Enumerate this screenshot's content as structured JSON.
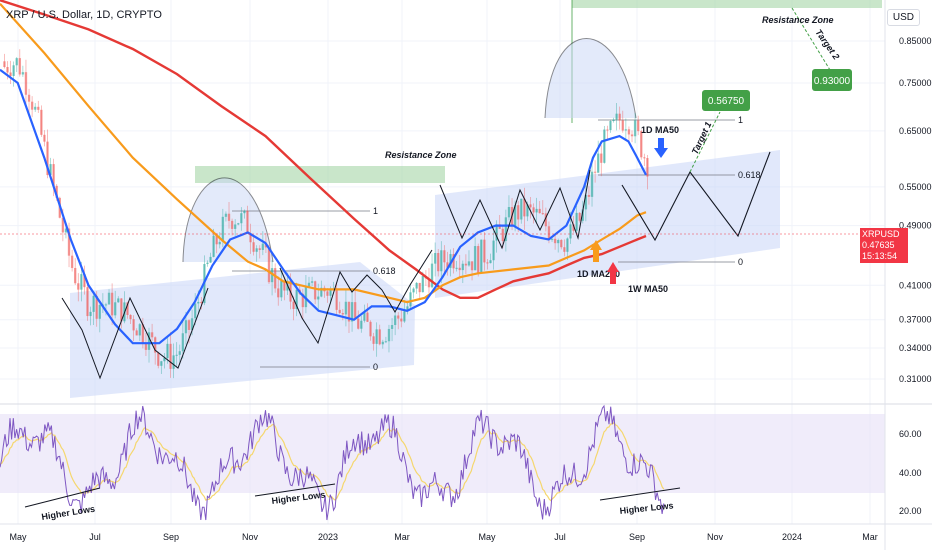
{
  "header": {
    "symbol_title": "XRP / U.S. Dollar, 1D, CRYPTO",
    "scale_label": "USD"
  },
  "price_tag": {
    "symbol": "XRPUSD",
    "price": "0.47635",
    "countdown": "15:13:54"
  },
  "colors": {
    "ma50": "#2962ff",
    "ma200": "#f89b1c",
    "weekly_ma50": "#e53935",
    "rsi_line": "#7e57c2",
    "rsi_ma": "#f5d76e",
    "channel_fill": "#c9d6f7",
    "resistance_fill": "#a5d6a7",
    "target_green": "#43a047",
    "price_red": "#f23645"
  },
  "chart_data": [
    {
      "type": "line",
      "title": "XRP / U.S. Dollar, 1D, CRYPTO",
      "y_scale": "log",
      "y_ticks": [
        "0.85000",
        "0.75000",
        "0.65000",
        "0.55000",
        "0.49000",
        "0.41000",
        "0.37000",
        "0.34000",
        "0.31000"
      ],
      "x_ticks": [
        "May",
        "Jul",
        "Sep",
        "Nov",
        "2023",
        "Mar",
        "May",
        "Jul",
        "Sep",
        "Nov",
        "2024",
        "Mar"
      ],
      "series": [
        {
          "name": "1D MA50",
          "points": [
            [
              0.0,
              0.78
            ],
            [
              0.02,
              0.75
            ],
            [
              0.05,
              0.6
            ],
            [
              0.08,
              0.47
            ],
            [
              0.1,
              0.41
            ],
            [
              0.13,
              0.365
            ],
            [
              0.15,
              0.345
            ],
            [
              0.18,
              0.345
            ],
            [
              0.2,
              0.36
            ],
            [
              0.22,
              0.39
            ],
            [
              0.24,
              0.435
            ],
            [
              0.26,
              0.47
            ],
            [
              0.28,
              0.48
            ],
            [
              0.3,
              0.465
            ],
            [
              0.32,
              0.43
            ],
            [
              0.34,
              0.4
            ],
            [
              0.36,
              0.38
            ],
            [
              0.38,
              0.375
            ],
            [
              0.4,
              0.37
            ],
            [
              0.42,
              0.385
            ],
            [
              0.44,
              0.385
            ],
            [
              0.46,
              0.38
            ],
            [
              0.48,
              0.39
            ],
            [
              0.5,
              0.42
            ],
            [
              0.52,
              0.46
            ],
            [
              0.54,
              0.48
            ],
            [
              0.56,
              0.49
            ],
            [
              0.58,
              0.49
            ],
            [
              0.6,
              0.475
            ],
            [
              0.62,
              0.47
            ],
            [
              0.64,
              0.49
            ],
            [
              0.66,
              0.55
            ],
            [
              0.67,
              0.6
            ],
            [
              0.68,
              0.63
            ],
            [
              0.7,
              0.64
            ],
            [
              0.71,
              0.63
            ],
            [
              0.72,
              0.6
            ],
            [
              0.73,
              0.57
            ]
          ]
        },
        {
          "name": "1D MA200",
          "points": [
            [
              0.0,
              0.95
            ],
            [
              0.05,
              0.82
            ],
            [
              0.1,
              0.7
            ],
            [
              0.15,
              0.6
            ],
            [
              0.2,
              0.53
            ],
            [
              0.25,
              0.47
            ],
            [
              0.28,
              0.44
            ],
            [
              0.3,
              0.43
            ],
            [
              0.32,
              0.415
            ],
            [
              0.36,
              0.405
            ],
            [
              0.4,
              0.405
            ],
            [
              0.44,
              0.395
            ],
            [
              0.46,
              0.39
            ],
            [
              0.48,
              0.395
            ],
            [
              0.5,
              0.41
            ],
            [
              0.52,
              0.42
            ],
            [
              0.54,
              0.425
            ],
            [
              0.58,
              0.43
            ],
            [
              0.62,
              0.435
            ],
            [
              0.64,
              0.445
            ],
            [
              0.66,
              0.455
            ],
            [
              0.68,
              0.47
            ],
            [
              0.7,
              0.485
            ],
            [
              0.71,
              0.495
            ],
            [
              0.72,
              0.505
            ],
            [
              0.73,
              0.51
            ]
          ]
        },
        {
          "name": "1W MA50",
          "points": [
            [
              0.0,
              0.96
            ],
            [
              0.05,
              0.92
            ],
            [
              0.1,
              0.88
            ],
            [
              0.15,
              0.83
            ],
            [
              0.2,
              0.77
            ],
            [
              0.25,
              0.7
            ],
            [
              0.3,
              0.64
            ],
            [
              0.35,
              0.565
            ],
            [
              0.4,
              0.5
            ],
            [
              0.44,
              0.455
            ],
            [
              0.47,
              0.43
            ],
            [
              0.5,
              0.405
            ],
            [
              0.52,
              0.395
            ],
            [
              0.54,
              0.395
            ],
            [
              0.56,
              0.405
            ],
            [
              0.58,
              0.415
            ],
            [
              0.6,
              0.42
            ],
            [
              0.62,
              0.425
            ],
            [
              0.64,
              0.435
            ],
            [
              0.66,
              0.445
            ],
            [
              0.68,
              0.45
            ],
            [
              0.7,
              0.46
            ],
            [
              0.72,
              0.47
            ],
            [
              0.73,
              0.475
            ]
          ]
        }
      ],
      "annotations": {
        "resistance_zone_label": "Resistance Zone",
        "fib_levels": [
          "1",
          "0.618",
          "0"
        ],
        "target_1_label": "Target 1",
        "target_1_value": "0.56750",
        "target_2_label": "Target 2",
        "target_2_value": "0.93000",
        "ma_labels": [
          "1D MA50",
          "1D MA200",
          "1W MA50"
        ]
      }
    },
    {
      "type": "line",
      "title": "",
      "y_ticks": [
        "60.00",
        "40.00",
        "20.00"
      ],
      "annotations": {
        "higher_lows_label": "Higher Lows"
      }
    }
  ]
}
